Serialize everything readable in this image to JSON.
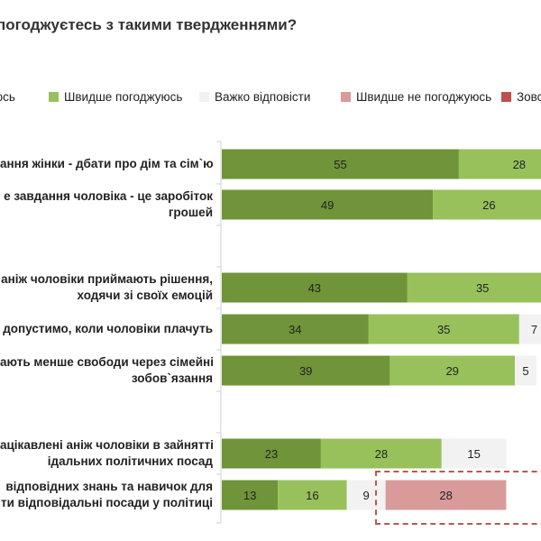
{
  "title": "погоджуєтесь з такими твердженнями?",
  "colors": {
    "series": [
      "#6f9439",
      "#98c15b",
      "#f2f2f2",
      "#d99a9a",
      "#c0504d"
    ],
    "axis": "#d0d0d0",
    "highlight": "#b85a4f"
  },
  "legend": [
    {
      "label": "юсь"
    },
    {
      "label": "Швидше погоджуюсь"
    },
    {
      "label": "Важко відповісти"
    },
    {
      "label": "Швидше не погоджуюсь"
    },
    {
      "label": "Зовс"
    }
  ],
  "chart_data": {
    "type": "bar",
    "orientation": "horizontal",
    "stacked": true,
    "title": "погоджуєтесь з такими твердженнями?",
    "categories": [
      [
        "ання жінки - дбати про дім та сім`ю"
      ],
      [
        "е завдання чоловіка - це заробіток",
        "грошей"
      ],
      [
        "аніж чоловіки приймають рішення,",
        "ходячи зі своїх емоцій"
      ],
      [
        "допустимо, коли чоловіки плачуть"
      ],
      [
        "ають менше свободи через сімейні",
        "зобов`язання"
      ],
      [
        "ацікавлені аніж чоловіки в зайнятті",
        "ідальних політичних посад"
      ],
      [
        "відповідних знань та навичок для",
        "ти відповідальні посади у політиці"
      ]
    ],
    "series": [
      {
        "name": "юсь",
        "values": [
          55,
          49,
          43,
          34,
          39,
          23,
          13
        ]
      },
      {
        "name": "Швидше погоджуюсь",
        "values": [
          28,
          26,
          35,
          35,
          29,
          28,
          16
        ]
      },
      {
        "name": "Важко відповісти",
        "values": [
          null,
          null,
          null,
          7,
          5,
          15,
          9
        ]
      },
      {
        "name": "Швидше не погоджуюсь",
        "values": [
          null,
          null,
          null,
          null,
          null,
          null,
          28
        ]
      },
      {
        "name": "Зовс",
        "values": [
          null,
          null,
          null,
          null,
          null,
          null,
          null
        ]
      }
    ],
    "xlim": [
      0,
      100
    ],
    "highlighted_category_index": 6
  }
}
